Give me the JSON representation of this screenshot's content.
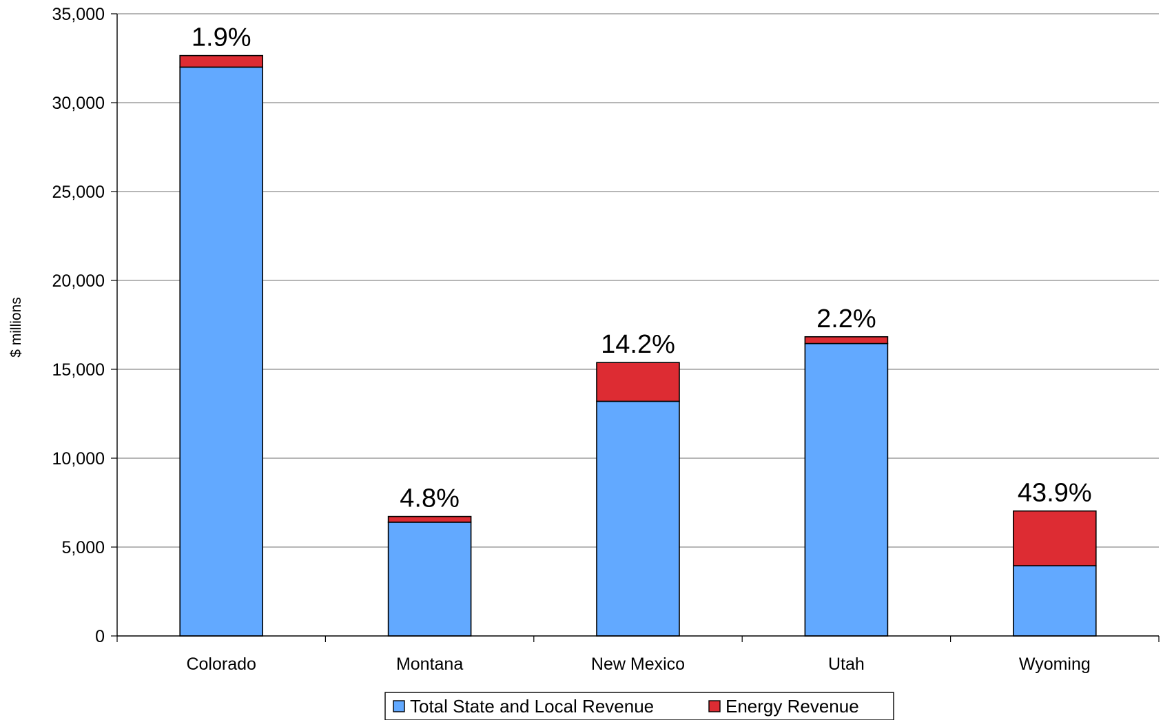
{
  "chart_data": {
    "type": "bar",
    "stacked": true,
    "title": "",
    "xlabel": "",
    "ylabel": "$ millions",
    "ylim": [
      0,
      35000
    ],
    "yticks": [
      0,
      5000,
      10000,
      15000,
      20000,
      25000,
      30000,
      35000
    ],
    "ytick_labels": [
      "0",
      "5,000",
      "10,000",
      "15,000",
      "20,000",
      "25,000",
      "30,000",
      "35,000"
    ],
    "grid": true,
    "legend_position": "bottom",
    "categories": [
      "Colorado",
      "Montana",
      "New Mexico",
      "Utah",
      "Wyoming"
    ],
    "series": [
      {
        "name": "Total State and Local Revenue",
        "color": "#62a9ff",
        "values": [
          32000,
          6400,
          13200,
          16450,
          3950
        ]
      },
      {
        "name": "Energy Revenue",
        "color": "#dd2c33",
        "values": [
          650,
          320,
          2180,
          380,
          3080
        ]
      }
    ],
    "data_labels": [
      "1.9%",
      "4.8%",
      "14.2%",
      "2.2%",
      "43.9%"
    ]
  }
}
